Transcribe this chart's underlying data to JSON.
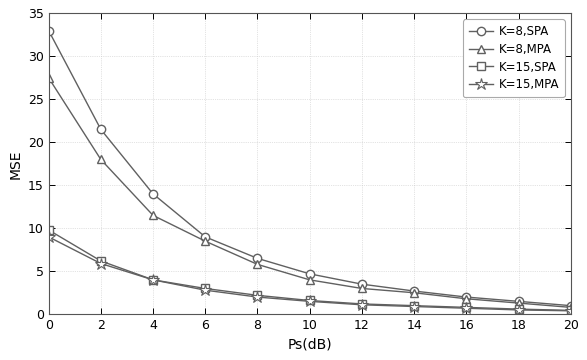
{
  "x": [
    0,
    2,
    4,
    6,
    8,
    10,
    12,
    14,
    16,
    18,
    20
  ],
  "K8_SPA": [
    33.0,
    21.5,
    14.0,
    9.0,
    6.5,
    4.7,
    3.5,
    2.7,
    2.0,
    1.5,
    1.0
  ],
  "K8_MPA": [
    27.5,
    18.0,
    11.5,
    8.5,
    5.8,
    4.0,
    3.0,
    2.5,
    1.8,
    1.3,
    0.8
  ],
  "K15_SPA": [
    9.8,
    6.2,
    4.0,
    3.0,
    2.2,
    1.6,
    1.2,
    1.0,
    0.8,
    0.6,
    0.45
  ],
  "K15_MPA": [
    9.0,
    5.9,
    4.0,
    2.8,
    2.0,
    1.5,
    1.1,
    0.9,
    0.7,
    0.5,
    0.4
  ],
  "xlabel": "Ps(dB)",
  "ylabel": "MSE",
  "xlim": [
    0,
    20
  ],
  "ylim": [
    0,
    35
  ],
  "yticks": [
    0,
    5,
    10,
    15,
    20,
    25,
    30,
    35
  ],
  "xticks": [
    0,
    2,
    4,
    6,
    8,
    10,
    12,
    14,
    16,
    18,
    20
  ],
  "legend_labels": [
    "K=8,SPA",
    "K=8,MPA",
    "K=15,SPA",
    "K=15,MPA"
  ],
  "line_color": "#606060",
  "background_color": "#ffffff",
  "grid_color": "#c8c8c8",
  "figsize": [
    5.87,
    3.6
  ],
  "dpi": 100
}
